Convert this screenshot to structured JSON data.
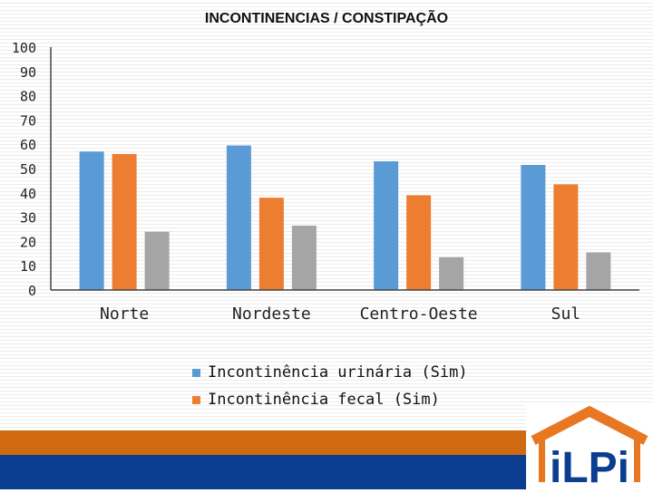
{
  "chart_data": {
    "type": "bar",
    "title": "INCONTINENCIAS / CONSTIPAÇÃO",
    "categories": [
      "Norte",
      "Nordeste",
      "Centro-Oeste",
      "Sul"
    ],
    "series": [
      {
        "name": "Incontinência urinária (Sim)",
        "values": [
          57,
          59.5,
          53,
          51.5
        ],
        "color": "#5b9bd5"
      },
      {
        "name": "Incontinência fecal (Sim)",
        "values": [
          56,
          38,
          39,
          43.5
        ],
        "color": "#ed7d31"
      },
      {
        "name": "",
        "values": [
          24,
          26.5,
          13.5,
          15.5
        ],
        "color": "#a5a5a5"
      }
    ],
    "ylim": [
      0,
      100
    ],
    "yticks": [
      0,
      10,
      20,
      30,
      40,
      50,
      60,
      70,
      80,
      90,
      100
    ],
    "xlabel": "",
    "ylabel": ""
  },
  "legend": {
    "items": [
      {
        "label": "Incontinência urinária (Sim)",
        "color": "#5b9bd5"
      },
      {
        "label": "Incontinência fecal (Sim)",
        "color": "#ed7d31"
      }
    ]
  },
  "logo": {
    "text": "iLPi",
    "brand_orange": "#e87722",
    "brand_blue": "#0b3d91"
  }
}
